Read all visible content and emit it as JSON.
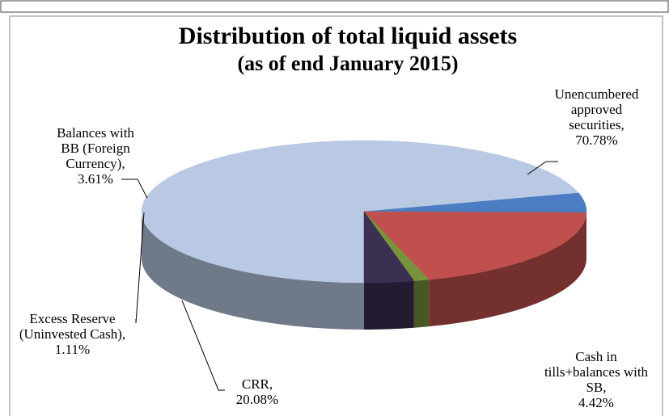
{
  "chart_data": {
    "type": "pie3d",
    "title": "Distribution of total liquid assets",
    "subtitle": "(as of end January 2015)",
    "categories": [
      "Unencumbered approved securities,",
      "Cash in tills+balances with SB,",
      "CRR,",
      "Excess Reserve (Uninvested Cash),",
      "Balances with BB (Foreign Currency),"
    ],
    "values": [
      70.78,
      4.42,
      20.08,
      1.11,
      3.61
    ],
    "value_labels": [
      "70.78%",
      "4.42%",
      "20.08%",
      "1.11%",
      "3.61%"
    ],
    "colors": [
      "#b9c9e3",
      "#4a7dc1",
      "#c0504d",
      "#77933c",
      "#3b2f52"
    ]
  }
}
